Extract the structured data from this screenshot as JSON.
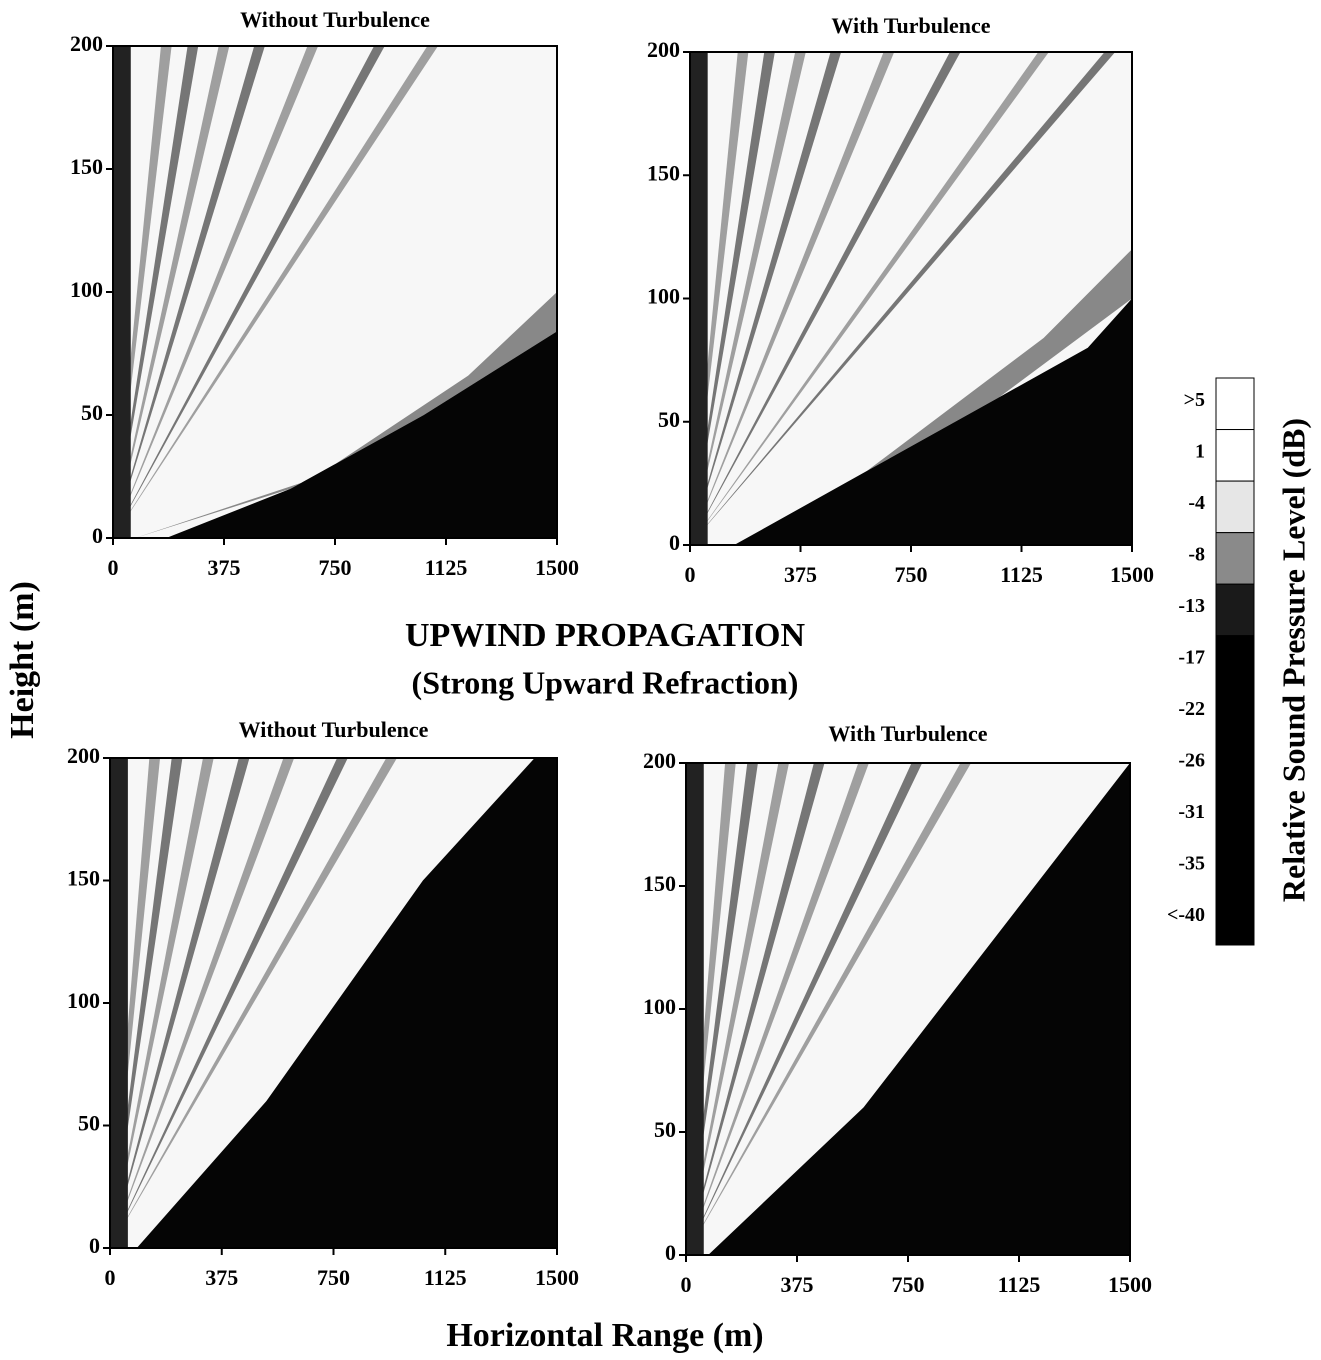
{
  "labels": {
    "y_label": "Height (m)",
    "x_label": "Horizontal Range (m)",
    "heading": "UPWIND PROPAGATION",
    "subheading": "(Strong Upward Refraction)"
  },
  "chart_data": [
    {
      "type": "heatmap",
      "title": "Without Turbulence",
      "xlim": [
        0,
        1500
      ],
      "ylim": [
        0,
        200
      ],
      "xticks": [
        0,
        375,
        750,
        1125,
        1500
      ],
      "yticks": [
        0,
        50,
        100,
        150,
        200
      ]
    },
    {
      "type": "heatmap",
      "title": "With Turbulence",
      "xlim": [
        0,
        1500
      ],
      "ylim": [
        0,
        200
      ],
      "xticks": [
        0,
        375,
        750,
        1125,
        1500
      ],
      "yticks": [
        0,
        50,
        100,
        150,
        200
      ]
    },
    {
      "type": "heatmap",
      "title": "Without Turbulence",
      "xlim": [
        0,
        1500
      ],
      "ylim": [
        0,
        200
      ],
      "xticks": [
        0,
        375,
        750,
        1125,
        1500
      ],
      "yticks": [
        0,
        50,
        100,
        150,
        200
      ]
    },
    {
      "type": "heatmap",
      "title": "With Turbulence",
      "xlim": [
        0,
        1500
      ],
      "ylim": [
        0,
        200
      ],
      "xticks": [
        0,
        375,
        750,
        1125,
        1500
      ],
      "yticks": [
        0,
        50,
        100,
        150,
        200
      ]
    },
    {
      "type": "colorbar",
      "title": "Relative Sound Pressure Level (dB)",
      "ticks": [
        {
          "value": 5,
          "label": ">5"
        },
        1,
        -4,
        -8,
        -13,
        -17,
        -22,
        -26,
        -31,
        -35,
        {
          "value": -40,
          "label": "<-40"
        }
      ],
      "colors": [
        "#ffffff",
        "#ffffff",
        "#e6e6e6",
        "#8a8a8a",
        "#1a1a1a",
        "#000000",
        "#000000",
        "#000000",
        "#000000",
        "#000000",
        "#000000"
      ]
    }
  ]
}
